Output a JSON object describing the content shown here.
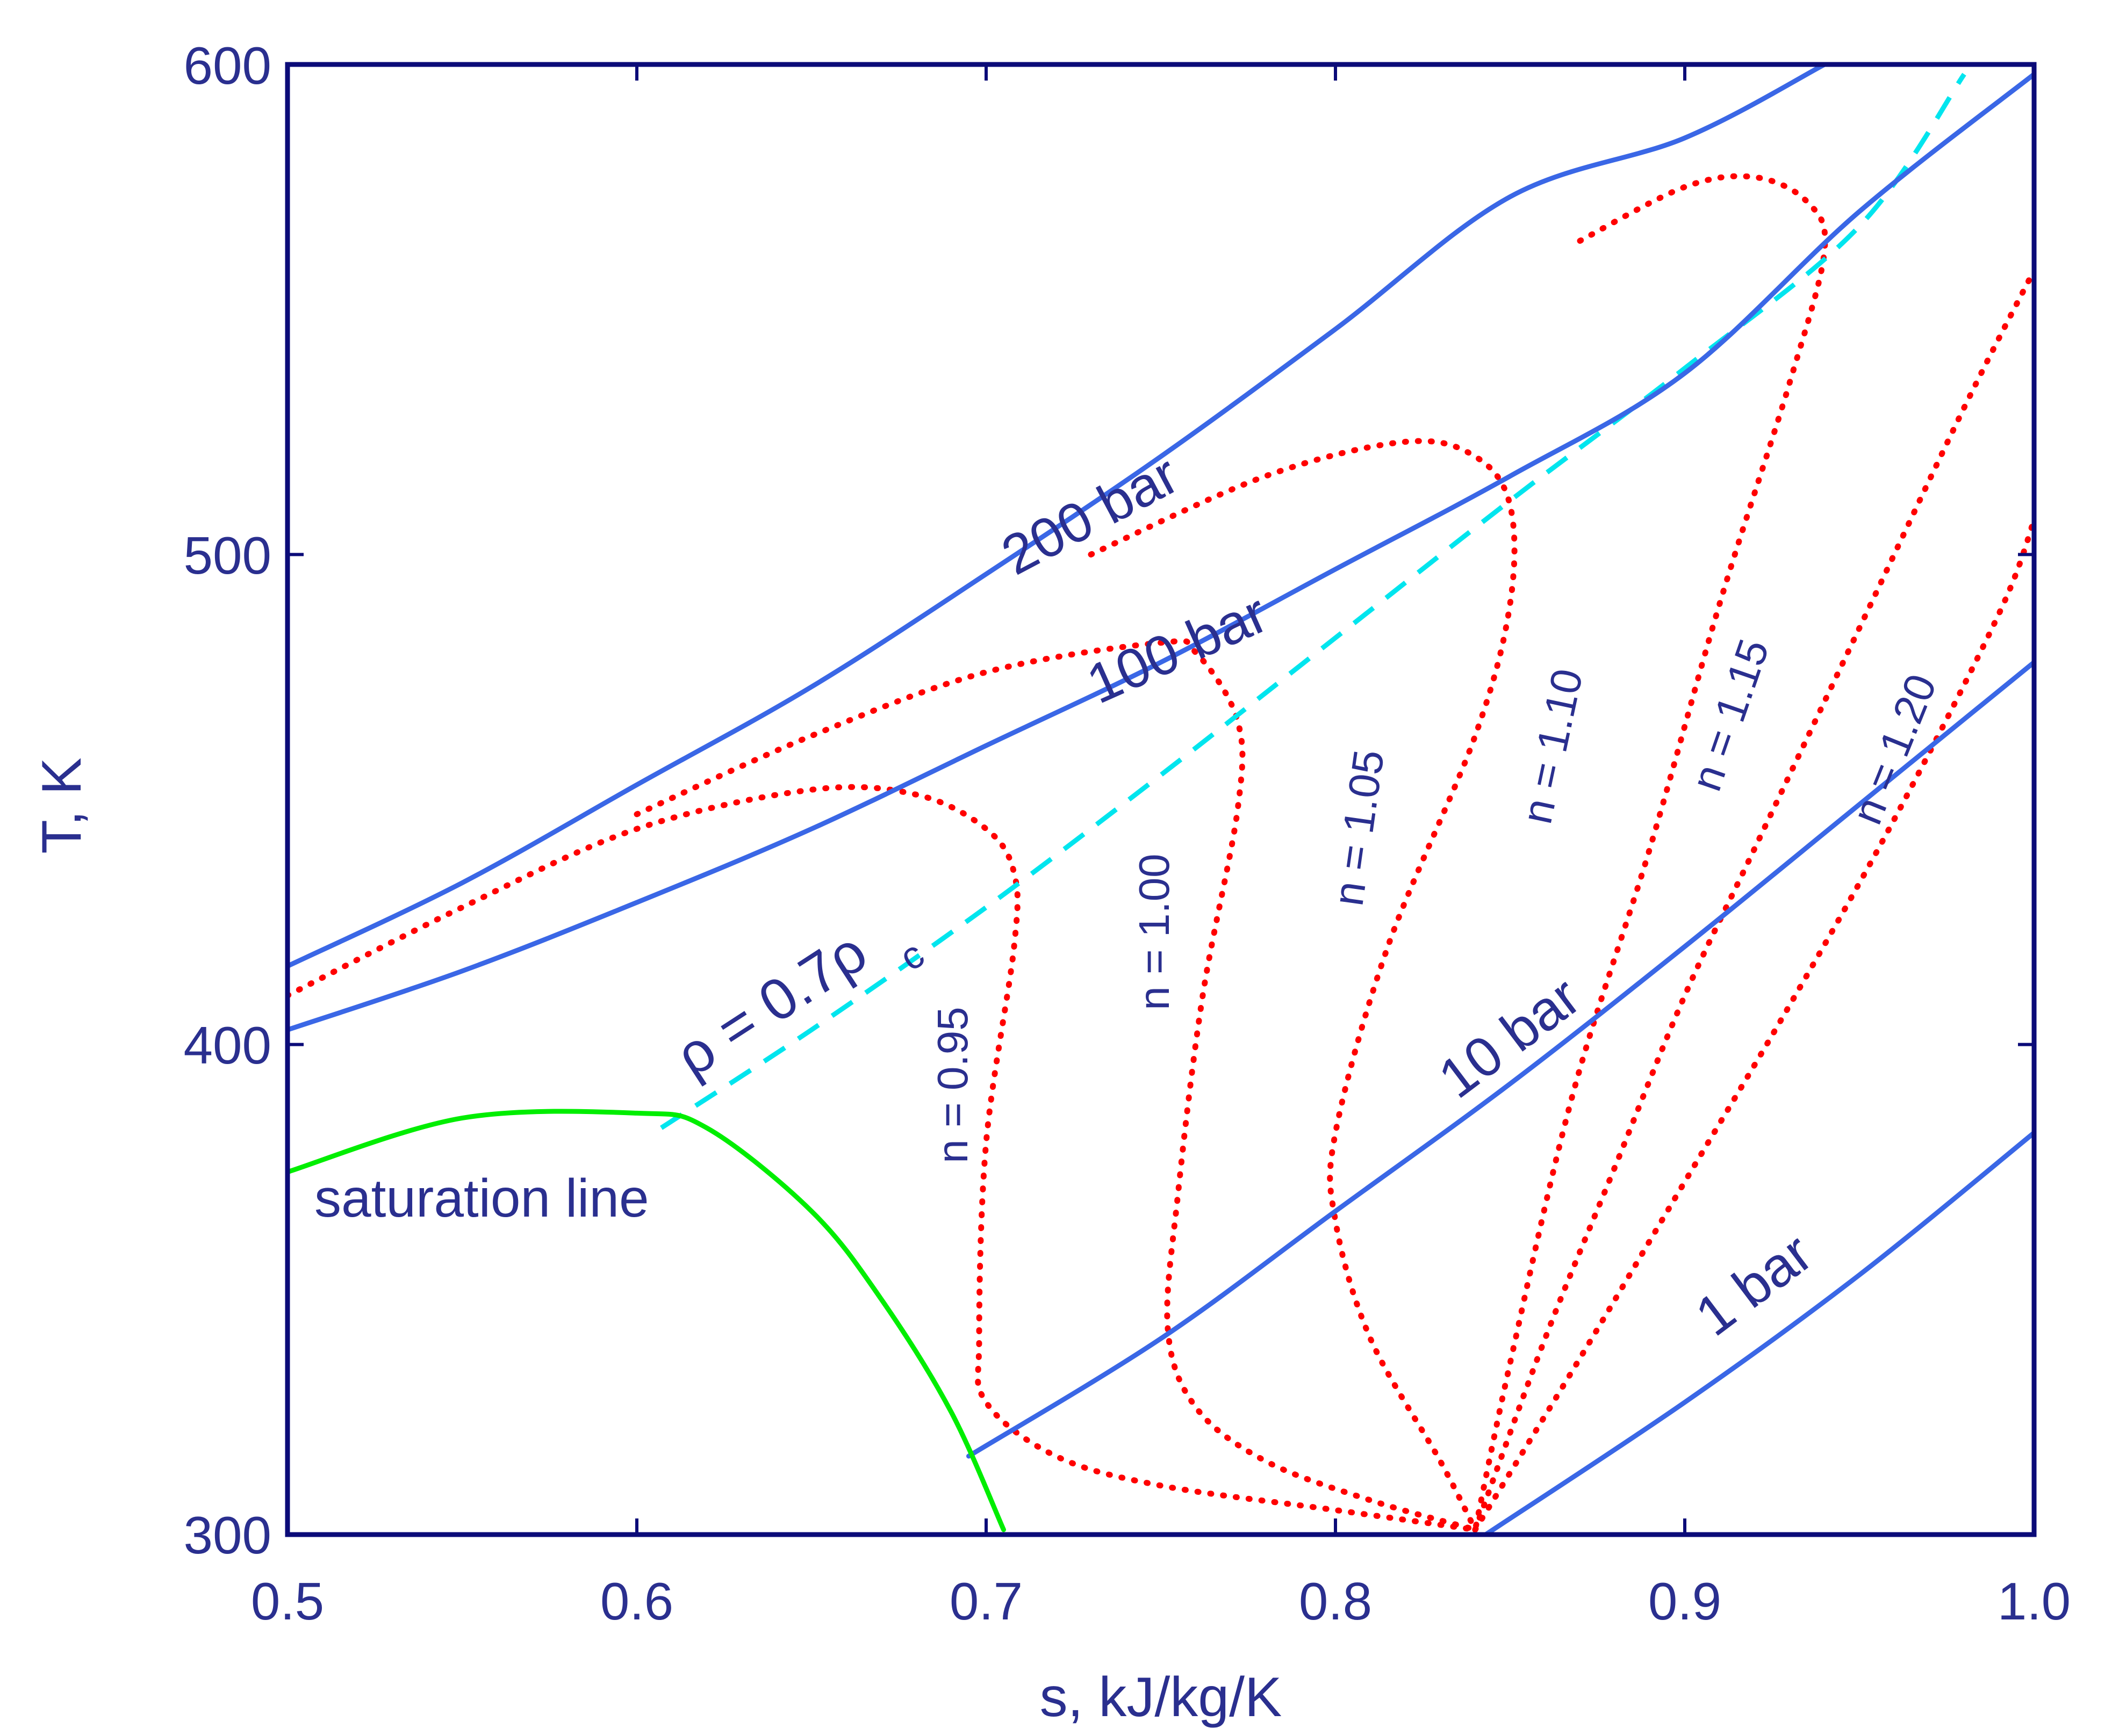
{
  "chart_data": {
    "type": "line",
    "xlabel": "s, kJ/kg/K",
    "ylabel": "T, K",
    "xlim": [
      0.5,
      1.0
    ],
    "ylim": [
      300,
      600
    ],
    "xticks": [
      "0.5",
      "0.6",
      "0.7",
      "0.8",
      "0.9",
      "1.0"
    ],
    "yticks": [
      "300",
      "400",
      "500",
      "600"
    ],
    "grid": false,
    "colors": {
      "frame": "#0b0b78",
      "isobar": "#3a67e6",
      "polytrope": "#ff0000",
      "saturation": "#00ee00",
      "density": "#00e5ee",
      "text": "#2a2f8f"
    },
    "series": [
      {
        "group": "isobar",
        "label": "200 bar",
        "x": [
          0.5,
          0.55,
          0.6,
          0.65,
          0.7,
          0.75,
          0.8,
          0.85,
          0.9,
          0.94
        ],
        "y": [
          416,
          433,
          453,
          473,
          496,
          520,
          546,
          573,
          585,
          600
        ]
      },
      {
        "group": "isobar",
        "label": "100 bar",
        "x": [
          0.5,
          0.55,
          0.6,
          0.65,
          0.7,
          0.75,
          0.8,
          0.85,
          0.9,
          0.95,
          1.0
        ],
        "y": [
          403,
          415,
          429,
          444,
          461,
          478,
          497,
          516,
          537,
          570,
          598
        ]
      },
      {
        "group": "isobar",
        "label": "10 bar",
        "x": [
          0.695,
          0.75,
          0.8,
          0.85,
          0.9,
          0.95,
          1.0
        ],
        "y": [
          316,
          340,
          366,
          392,
          420,
          449,
          478
        ]
      },
      {
        "group": "isobar",
        "label": "1 bar",
        "x": [
          0.843,
          0.9,
          0.95,
          1.0
        ],
        "y": [
          300,
          327,
          353,
          382
        ]
      },
      {
        "group": "saturation",
        "label": "saturation line",
        "x": [
          0.5,
          0.55,
          0.6,
          0.62,
          0.65,
          0.67,
          0.69,
          0.705
        ],
        "y": [
          374,
          385,
          386,
          383,
          366,
          348,
          325,
          301
        ]
      },
      {
        "group": "density",
        "label": "ρ = 0.7ρ",
        "x": [
          0.607,
          0.65,
          0.7,
          0.75,
          0.8,
          0.85,
          0.9,
          0.95,
          0.98
        ],
        "y": [
          383,
          403,
          428,
          455,
          483,
          511,
          538,
          567,
          598
        ]
      },
      {
        "group": "polytrope",
        "label": "n = 0.95",
        "x": [
          0.5,
          0.55,
          0.6,
          0.65,
          0.68,
          0.7,
          0.708,
          0.708,
          0.7,
          0.698,
          0.7,
          0.72,
          0.75,
          0.8,
          0.84
        ],
        "y": [
          410,
          428,
          444,
          452,
          451,
          444,
          435,
          420,
          380,
          340,
          327,
          316,
          310,
          305,
          301
        ]
      },
      {
        "group": "polytrope",
        "label": "n = 1.00",
        "x": [
          0.6,
          0.65,
          0.7,
          0.75,
          0.76,
          0.772,
          0.772,
          0.762,
          0.755,
          0.752,
          0.76,
          0.78,
          0.81,
          0.84
        ],
        "y": [
          447,
          463,
          476,
          482,
          480,
          466,
          448,
          410,
          370,
          342,
          326,
          315,
          307,
          301
        ]
      },
      {
        "group": "polytrope",
        "label": "n = 1.05",
        "x": [
          0.73,
          0.78,
          0.82,
          0.84,
          0.85,
          0.85,
          0.84,
          0.815,
          0.8,
          0.8,
          0.81,
          0.83,
          0.84
        ],
        "y": [
          500,
          516,
          523,
          520,
          510,
          490,
          463,
          420,
          382,
          364,
          340,
          315,
          301
        ]
      },
      {
        "group": "polytrope",
        "label": "n = 1.10",
        "x": [
          0.87,
          0.9,
          0.92,
          0.935,
          0.94,
          0.93,
          0.91,
          0.89,
          0.868,
          0.85,
          0.84
        ],
        "y": [
          564,
          575,
          577,
          572,
          562,
          535,
          490,
          440,
          390,
          335,
          301
        ]
      },
      {
        "group": "polytrope",
        "label": "n = 1.15",
        "x": [
          0.84,
          0.86,
          0.88,
          0.9,
          0.92,
          0.95,
          0.98,
          1.0
        ],
        "y": [
          301,
          340,
          375,
          410,
          440,
          485,
          530,
          558
        ]
      },
      {
        "group": "polytrope",
        "label": "n = 1.20",
        "x": [
          0.84,
          0.87,
          0.9,
          0.93,
          0.96,
          0.99,
          1.0
        ],
        "y": [
          301,
          336,
          372,
          408,
          446,
          488,
          507
        ]
      }
    ]
  }
}
